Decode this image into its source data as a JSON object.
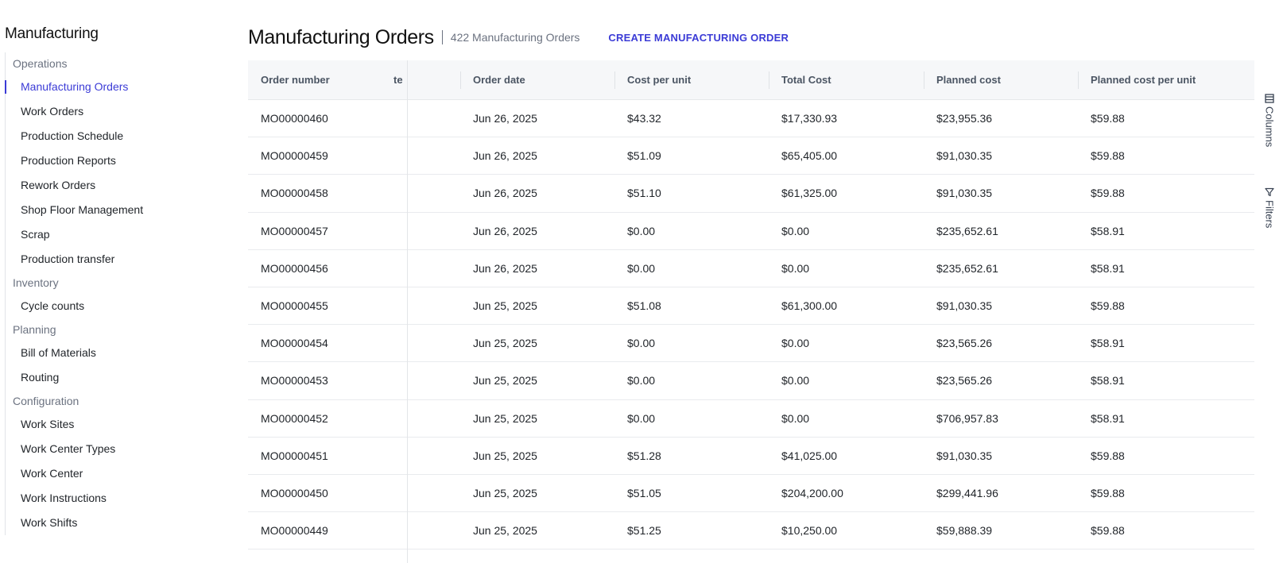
{
  "sidebar": {
    "title": "Manufacturing",
    "sections": [
      {
        "label": "Operations",
        "items": [
          "Manufacturing Orders",
          "Work Orders",
          "Production Schedule",
          "Production Reports",
          "Rework Orders",
          "Shop Floor Management",
          "Scrap",
          "Production transfer"
        ]
      },
      {
        "label": "Inventory",
        "items": [
          "Cycle counts"
        ]
      },
      {
        "label": "Planning",
        "items": [
          "Bill of Materials",
          "Routing"
        ]
      },
      {
        "label": "Configuration",
        "items": [
          "Work Sites",
          "Work Center Types",
          "Work Center",
          "Work Instructions",
          "Work Shifts"
        ]
      }
    ],
    "active_item": "Manufacturing Orders"
  },
  "header": {
    "title": "Manufacturing Orders",
    "count": "422 Manufacturing Orders",
    "create_label": "CREATE MANUFACTURING ORDER"
  },
  "table": {
    "columns": [
      "Order number",
      "te",
      "Order date",
      "Cost per unit",
      "Total Cost",
      "Planned cost",
      "Planned cost per unit"
    ],
    "rows": [
      [
        "MO00000460",
        "",
        "Jun 26, 2025",
        "$43.32",
        "$17,330.93",
        "$23,955.36",
        "$59.88"
      ],
      [
        "MO00000459",
        "",
        "Jun 26, 2025",
        "$51.09",
        "$65,405.00",
        "$91,030.35",
        "$59.88"
      ],
      [
        "MO00000458",
        "",
        "Jun 26, 2025",
        "$51.10",
        "$61,325.00",
        "$91,030.35",
        "$59.88"
      ],
      [
        "MO00000457",
        "",
        "Jun 26, 2025",
        "$0.00",
        "$0.00",
        "$235,652.61",
        "$58.91"
      ],
      [
        "MO00000456",
        "",
        "Jun 26, 2025",
        "$0.00",
        "$0.00",
        "$235,652.61",
        "$58.91"
      ],
      [
        "MO00000455",
        "",
        "Jun 25, 2025",
        "$51.08",
        "$61,300.00",
        "$91,030.35",
        "$59.88"
      ],
      [
        "MO00000454",
        "",
        "Jun 25, 2025",
        "$0.00",
        "$0.00",
        "$23,565.26",
        "$58.91"
      ],
      [
        "MO00000453",
        "",
        "Jun 25, 2025",
        "$0.00",
        "$0.00",
        "$23,565.26",
        "$58.91"
      ],
      [
        "MO00000452",
        "",
        "Jun 25, 2025",
        "$0.00",
        "$0.00",
        "$706,957.83",
        "$58.91"
      ],
      [
        "MO00000451",
        "",
        "Jun 25, 2025",
        "$51.28",
        "$41,025.00",
        "$91,030.35",
        "$59.88"
      ],
      [
        "MO00000450",
        "",
        "Jun 25, 2025",
        "$51.05",
        "$204,200.00",
        "$299,441.96",
        "$59.88"
      ],
      [
        "MO00000449",
        "",
        "Jun 25, 2025",
        "$51.25",
        "$10,250.00",
        "$59,888.39",
        "$59.88"
      ]
    ]
  },
  "side_tools": [
    {
      "label": "Columns",
      "icon": "columns-icon"
    },
    {
      "label": "Filters",
      "icon": "filter-icon"
    }
  ],
  "colors": {
    "accent": "#3b3bd6",
    "header_bg": "#f6f7f9"
  }
}
